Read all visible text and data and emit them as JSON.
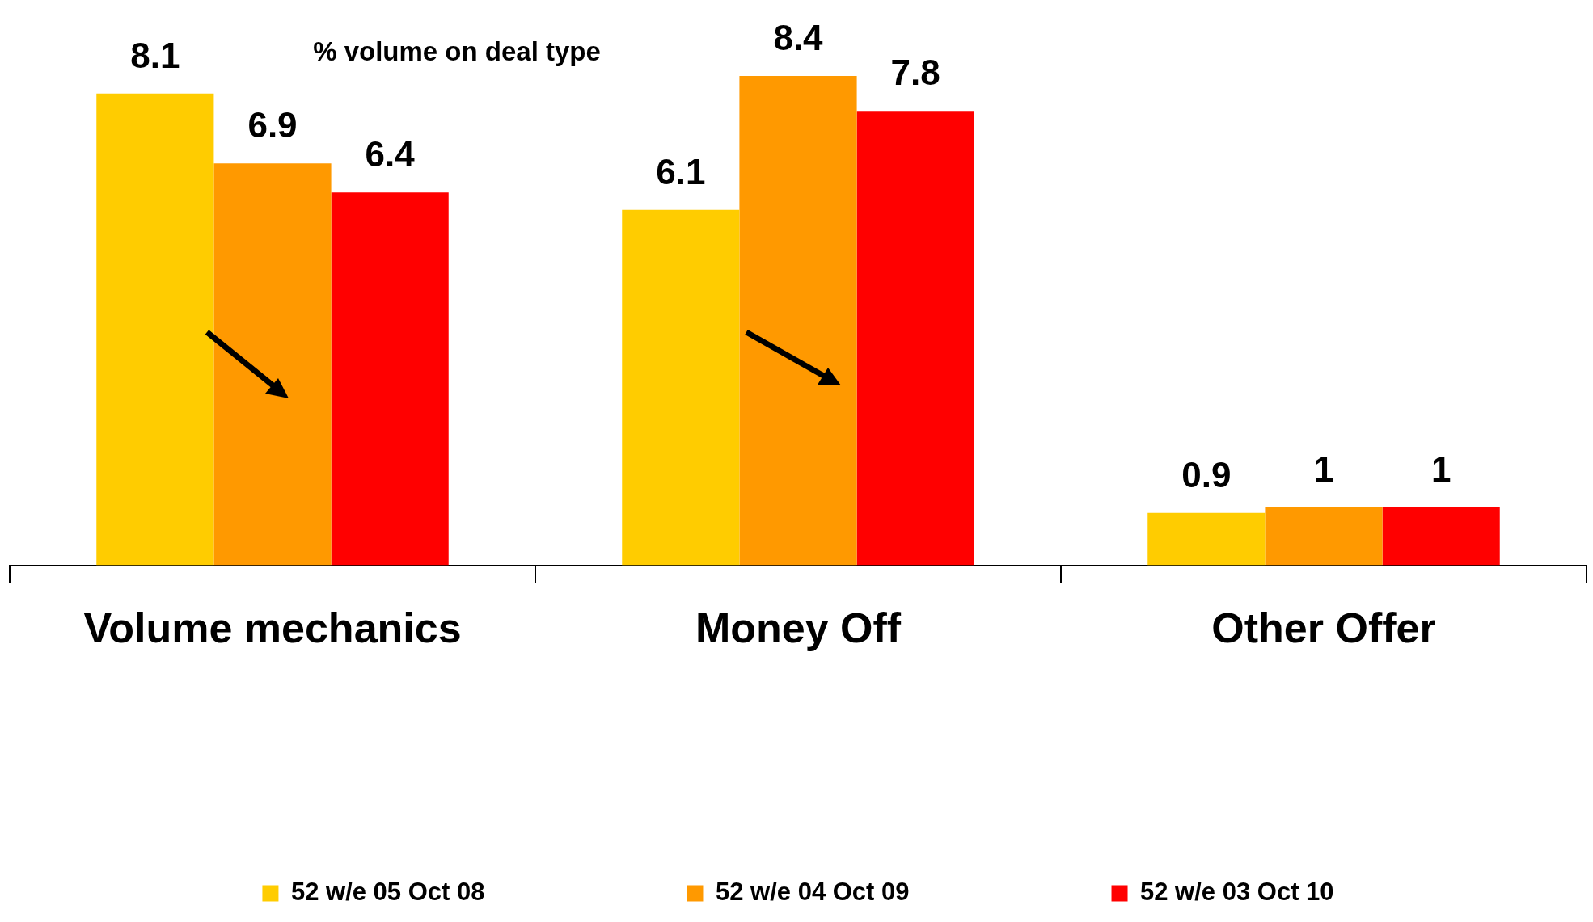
{
  "chart_data": {
    "type": "bar",
    "title": "% volume on deal type",
    "categories": [
      "Volume mechanics",
      "Money Off",
      "Other Offer"
    ],
    "series": [
      {
        "name": "52 w/e 05 Oct 08",
        "color": "#ffcc00",
        "values": [
          8.1,
          6.1,
          0.9
        ]
      },
      {
        "name": "52 w/e 04 Oct 09",
        "color": "#ff9900",
        "values": [
          6.9,
          8.4,
          1
        ]
      },
      {
        "name": "52 w/e 03 Oct 10",
        "color": "#ff0000",
        "values": [
          6.4,
          7.8,
          1
        ]
      }
    ],
    "data_labels": true,
    "legend": "bottom",
    "tick_labels": "x",
    "grid": false
  }
}
